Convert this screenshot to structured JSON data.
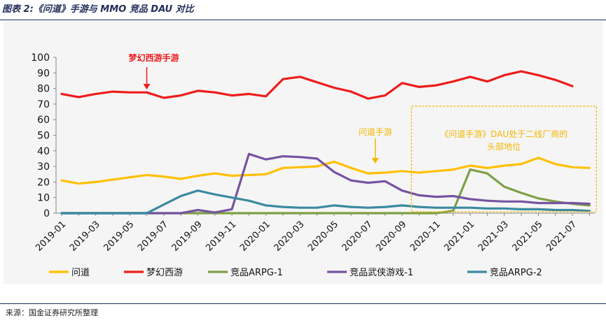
{
  "figure": {
    "title": "图表 2:《问道》手游与 MMO 竞品 DAU 对比",
    "source": "来源：国金证券研究所整理"
  },
  "chart_data": {
    "type": "line",
    "x": [
      "2019-01",
      "2019-02",
      "2019-03",
      "2019-04",
      "2019-05",
      "2019-06",
      "2019-07",
      "2019-08",
      "2019-09",
      "2019-10",
      "2019-11",
      "2019-12",
      "2020-01",
      "2020-02",
      "2020-03",
      "2020-04",
      "2020-05",
      "2020-06",
      "2020-07",
      "2020-08",
      "2020-09",
      "2020-10",
      "2020-11",
      "2020-12",
      "2021-01",
      "2021-02",
      "2021-03",
      "2021-04",
      "2021-05",
      "2021-06",
      "2021-07",
      "2021-08"
    ],
    "x_tick_labels": [
      "2019-01",
      "2019-03",
      "2019-05",
      "2019-07",
      "2019-09",
      "2019-11",
      "2020-01",
      "2020-03",
      "2020-05",
      "2020-07",
      "2020-09",
      "2020-11",
      "2021-01",
      "2021-03",
      "2021-05",
      "2021-07"
    ],
    "ylim": [
      0,
      100
    ],
    "y_ticks": [
      0,
      10,
      20,
      30,
      40,
      50,
      60,
      70,
      80,
      90,
      100
    ],
    "grid": false,
    "legend_position": "bottom",
    "series": [
      {
        "name": "问道",
        "color": "#FFC000",
        "values": [
          21,
          19,
          20,
          21.5,
          23,
          24.5,
          23.5,
          22,
          24,
          25.5,
          24,
          24.5,
          25,
          29,
          29.5,
          30,
          33,
          29,
          25.5,
          26,
          27,
          26,
          27,
          28,
          30.5,
          29,
          30.5,
          31.5,
          35.5,
          31.5,
          29.5,
          29
        ]
      },
      {
        "name": "梦幻西游",
        "color": "#EE1C1C",
        "values": [
          76.5,
          74.5,
          76.5,
          78,
          77.5,
          77.5,
          74,
          75.5,
          78.5,
          77.5,
          75.5,
          76.5,
          75,
          86,
          87.5,
          84,
          80.5,
          78,
          73.5,
          75.5,
          83.5,
          81,
          82,
          84.5,
          87.5,
          84.5,
          88.5,
          91,
          88.5,
          85.5,
          81.5,
          null
        ]
      },
      {
        "name": "竞品ARPG-1",
        "color": "#7FA045",
        "values": [
          0,
          0,
          0,
          0,
          0,
          0,
          0,
          0,
          0,
          0,
          0,
          0,
          0,
          0,
          0,
          0,
          0,
          0,
          0,
          0,
          0,
          0,
          0,
          1.5,
          28,
          25.5,
          17,
          13,
          9.5,
          7.5,
          6,
          5
        ]
      },
      {
        "name": "竞品武侠游戏-1",
        "color": "#7654A2",
        "values": [
          0,
          0,
          0,
          0,
          0,
          0,
          0,
          0,
          2,
          0.5,
          2.5,
          38,
          34.5,
          36.5,
          36,
          35,
          26.5,
          21,
          19.5,
          20.5,
          14.5,
          11.5,
          10.5,
          11,
          9,
          8,
          7.5,
          7.5,
          6.5,
          6.5,
          6.5,
          6
        ]
      },
      {
        "name": "竞品ARPG-2",
        "color": "#3A8AA0",
        "values": [
          0,
          0,
          0,
          0,
          0,
          0,
          5.5,
          11,
          14.5,
          12,
          10,
          8,
          5,
          4,
          3.5,
          3.5,
          5,
          4,
          3.5,
          4,
          5,
          4,
          3.5,
          3.5,
          3.5,
          3,
          3,
          2.5,
          2.5,
          2,
          2,
          1.5
        ]
      }
    ],
    "annotations": {
      "menghuan": "梦幻西游手游",
      "wendao": "问道手游",
      "box_line1": "《问道手游》DAU处于二线厂商的",
      "box_line2": "头部地位"
    },
    "annotation_colors": {
      "red": "#EE1C1C",
      "gold": "#F2B700"
    }
  }
}
